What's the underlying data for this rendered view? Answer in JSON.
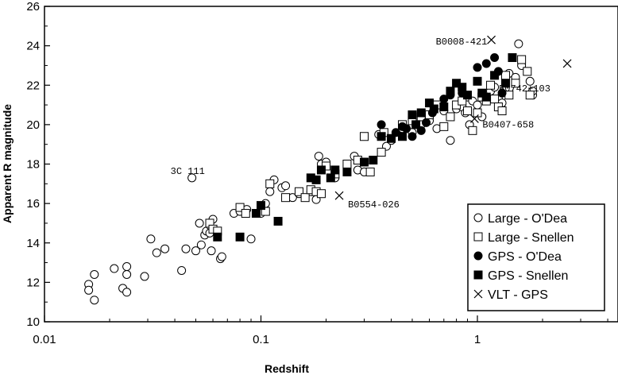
{
  "chart_data": {
    "type": "scatter",
    "xlabel": "Redshift",
    "ylabel": "Apparent R magnitude",
    "xscale": "log",
    "xlim": [
      0.01,
      4.5
    ],
    "ylim": [
      10,
      26
    ],
    "xticks": [
      0.01,
      0.1,
      1
    ],
    "xtick_labels": [
      "0.01",
      "0.1",
      "1"
    ],
    "yticks": [
      10,
      12,
      14,
      16,
      18,
      20,
      22,
      24,
      26
    ],
    "grid": false,
    "legend": "bottom-right",
    "series": [
      {
        "name": "Large - O'Dea",
        "marker": "open-circle",
        "points": [
          [
            0.016,
            11.9
          ],
          [
            0.016,
            11.6
          ],
          [
            0.017,
            11.1
          ],
          [
            0.017,
            12.4
          ],
          [
            0.021,
            12.7
          ],
          [
            0.023,
            11.7
          ],
          [
            0.024,
            11.5
          ],
          [
            0.024,
            12.4
          ],
          [
            0.024,
            12.8
          ],
          [
            0.029,
            12.3
          ],
          [
            0.031,
            14.2
          ],
          [
            0.033,
            13.5
          ],
          [
            0.036,
            13.7
          ],
          [
            0.043,
            12.6
          ],
          [
            0.045,
            13.7
          ],
          [
            0.048,
            17.3
          ],
          [
            0.05,
            13.6
          ],
          [
            0.052,
            15.0
          ],
          [
            0.053,
            13.9
          ],
          [
            0.055,
            14.4
          ],
          [
            0.056,
            14.6
          ],
          [
            0.058,
            14.5
          ],
          [
            0.058,
            14.9
          ],
          [
            0.059,
            13.6
          ],
          [
            0.06,
            15.2
          ],
          [
            0.065,
            13.2
          ],
          [
            0.066,
            13.3
          ],
          [
            0.075,
            15.5
          ],
          [
            0.08,
            15.6
          ],
          [
            0.086,
            15.7
          ],
          [
            0.09,
            14.2
          ],
          [
            0.1,
            15.5
          ],
          [
            0.105,
            16.0
          ],
          [
            0.11,
            16.6
          ],
          [
            0.115,
            17.2
          ],
          [
            0.125,
            16.8
          ],
          [
            0.13,
            16.9
          ],
          [
            0.14,
            16.3
          ],
          [
            0.15,
            16.5
          ],
          [
            0.17,
            16.6
          ],
          [
            0.18,
            16.2
          ],
          [
            0.185,
            18.4
          ],
          [
            0.19,
            18.0
          ],
          [
            0.2,
            18.1
          ],
          [
            0.22,
            17.3
          ],
          [
            0.25,
            17.9
          ],
          [
            0.27,
            18.4
          ],
          [
            0.28,
            17.7
          ],
          [
            0.3,
            17.6
          ],
          [
            0.35,
            19.5
          ],
          [
            0.38,
            18.9
          ],
          [
            0.4,
            19.2
          ],
          [
            0.45,
            19.8
          ],
          [
            0.5,
            19.6
          ],
          [
            0.55,
            20.0
          ],
          [
            0.6,
            20.2
          ],
          [
            0.65,
            19.8
          ],
          [
            0.7,
            20.7
          ],
          [
            0.75,
            19.2
          ],
          [
            0.8,
            20.8
          ],
          [
            0.85,
            20.9
          ],
          [
            0.88,
            20.6
          ],
          [
            0.9,
            21.4
          ],
          [
            0.92,
            20.0
          ],
          [
            0.95,
            21.2
          ],
          [
            1.0,
            21.0
          ],
          [
            1.05,
            20.4
          ],
          [
            1.1,
            21.5
          ],
          [
            1.15,
            21.7
          ],
          [
            1.2,
            21.9
          ],
          [
            1.25,
            21.3
          ],
          [
            1.3,
            21.1
          ],
          [
            1.4,
            22.6
          ],
          [
            1.5,
            22.4
          ],
          [
            1.55,
            24.1
          ],
          [
            1.6,
            23.0
          ],
          [
            1.75,
            22.2
          ],
          [
            1.8,
            21.5
          ],
          [
            1.8,
            21.7
          ]
        ]
      },
      {
        "name": "Large - Snellen",
        "marker": "open-square",
        "points": [
          [
            0.058,
            15.0
          ],
          [
            0.06,
            14.7
          ],
          [
            0.063,
            14.6
          ],
          [
            0.08,
            15.8
          ],
          [
            0.085,
            15.5
          ],
          [
            0.105,
            15.6
          ],
          [
            0.11,
            17.0
          ],
          [
            0.13,
            16.3
          ],
          [
            0.15,
            16.6
          ],
          [
            0.16,
            16.3
          ],
          [
            0.17,
            16.7
          ],
          [
            0.18,
            16.6
          ],
          [
            0.19,
            16.5
          ],
          [
            0.2,
            17.9
          ],
          [
            0.22,
            17.5
          ],
          [
            0.25,
            18.0
          ],
          [
            0.28,
            18.2
          ],
          [
            0.3,
            19.4
          ],
          [
            0.32,
            17.6
          ],
          [
            0.36,
            18.6
          ],
          [
            0.37,
            19.6
          ],
          [
            0.45,
            20.0
          ],
          [
            0.5,
            20.2
          ],
          [
            0.55,
            20.4
          ],
          [
            0.6,
            20.5
          ],
          [
            0.65,
            21.0
          ],
          [
            0.7,
            19.9
          ],
          [
            0.75,
            20.4
          ],
          [
            0.8,
            21.0
          ],
          [
            0.85,
            21.2
          ],
          [
            0.9,
            20.7
          ],
          [
            0.95,
            19.7
          ],
          [
            1.0,
            20.6
          ],
          [
            1.05,
            21.4
          ],
          [
            1.1,
            21.2
          ],
          [
            1.15,
            22.0
          ],
          [
            1.2,
            21.3
          ],
          [
            1.25,
            20.9
          ],
          [
            1.3,
            20.7
          ],
          [
            1.35,
            22.5
          ],
          [
            1.4,
            21.5
          ],
          [
            1.5,
            22.1
          ],
          [
            1.6,
            23.3
          ],
          [
            1.7,
            22.7
          ],
          [
            1.75,
            21.5
          ]
        ]
      },
      {
        "name": "GPS - O'Dea",
        "marker": "filled-circle",
        "points": [
          [
            0.36,
            20.0
          ],
          [
            0.42,
            19.6
          ],
          [
            0.45,
            19.9
          ],
          [
            0.47,
            19.8
          ],
          [
            0.5,
            19.4
          ],
          [
            0.55,
            19.7
          ],
          [
            0.58,
            20.1
          ],
          [
            0.62,
            20.6
          ],
          [
            0.7,
            21.3
          ],
          [
            0.75,
            21.5
          ],
          [
            0.85,
            21.6
          ],
          [
            1.0,
            22.9
          ],
          [
            1.1,
            23.1
          ],
          [
            1.2,
            23.4
          ],
          [
            1.25,
            22.7
          ],
          [
            1.3,
            21.6
          ]
        ]
      },
      {
        "name": "GPS - Snellen",
        "marker": "filled-square",
        "points": [
          [
            0.063,
            14.3
          ],
          [
            0.08,
            14.3
          ],
          [
            0.095,
            15.5
          ],
          [
            0.1,
            15.9
          ],
          [
            0.12,
            15.1
          ],
          [
            0.17,
            17.3
          ],
          [
            0.18,
            17.2
          ],
          [
            0.19,
            17.7
          ],
          [
            0.21,
            17.3
          ],
          [
            0.22,
            17.7
          ],
          [
            0.25,
            17.6
          ],
          [
            0.3,
            18.1
          ],
          [
            0.33,
            18.2
          ],
          [
            0.36,
            19.4
          ],
          [
            0.4,
            19.3
          ],
          [
            0.45,
            19.4
          ],
          [
            0.5,
            20.5
          ],
          [
            0.52,
            20.0
          ],
          [
            0.55,
            20.6
          ],
          [
            0.6,
            21.1
          ],
          [
            0.63,
            20.8
          ],
          [
            0.7,
            20.9
          ],
          [
            0.75,
            21.7
          ],
          [
            0.8,
            22.1
          ],
          [
            0.85,
            21.9
          ],
          [
            0.9,
            21.5
          ],
          [
            1.0,
            22.2
          ],
          [
            1.05,
            21.6
          ],
          [
            1.1,
            21.4
          ],
          [
            1.2,
            22.5
          ],
          [
            1.35,
            22.1
          ],
          [
            1.45,
            23.4
          ]
        ]
      },
      {
        "name": "VLT - GPS",
        "marker": "cross",
        "points": [
          [
            0.23,
            16.4
          ],
          [
            0.97,
            20.3
          ],
          [
            1.16,
            24.3
          ],
          [
            2.6,
            23.1
          ]
        ]
      }
    ],
    "annotations": [
      {
        "text": "B0008-421",
        "x": 1.16,
        "y": 24.3
      },
      {
        "text": "B0742+103",
        "x": 2.6,
        "y": 23.1
      },
      {
        "text": "B0407-658",
        "x": 0.97,
        "y": 20.3
      },
      {
        "text": "3C 111",
        "x": 0.048,
        "y": 17.3
      },
      {
        "text": "B0554-026",
        "x": 0.23,
        "y": 16.4
      }
    ]
  }
}
